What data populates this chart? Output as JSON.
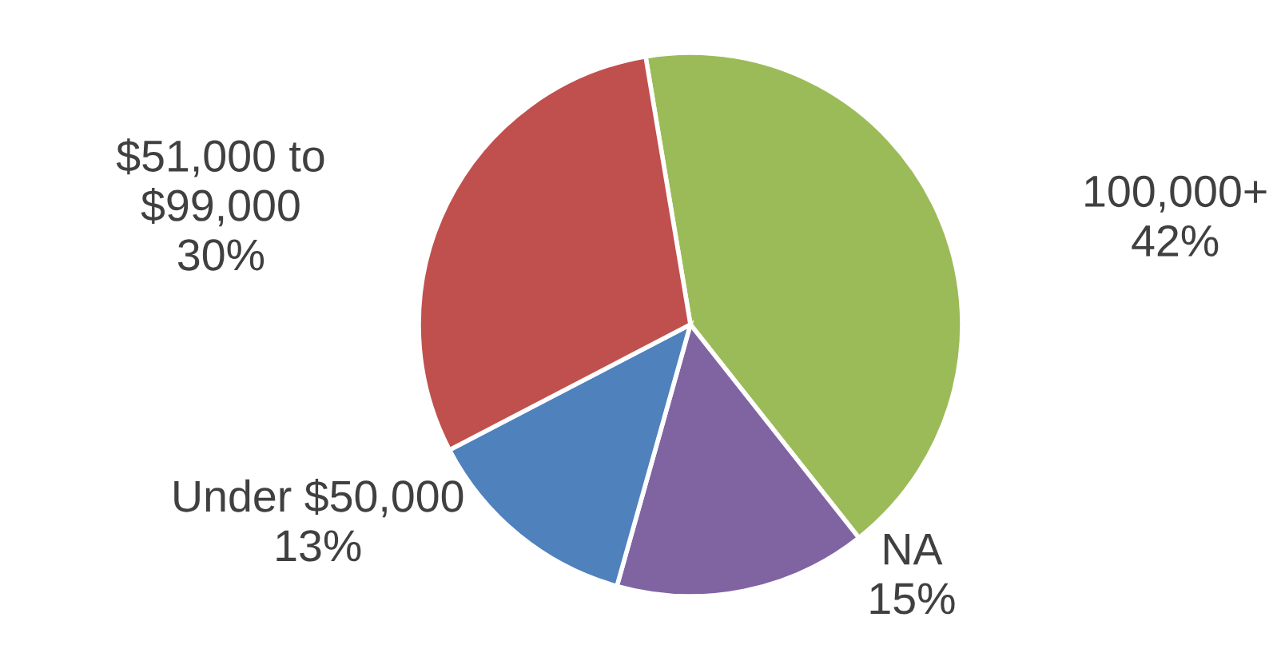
{
  "chart_data": {
    "type": "pie",
    "categories": [
      "100,000+",
      "NA",
      "Under $50,000",
      "$51,000 to\n$99,000"
    ],
    "values": [
      42,
      15,
      13,
      30
    ],
    "value_labels": [
      "42%",
      "15%",
      "13%",
      "30%"
    ],
    "colors": [
      "#9bbb59",
      "#8064a2",
      "#4f81bd",
      "#c0504d"
    ],
    "legend": false
  }
}
